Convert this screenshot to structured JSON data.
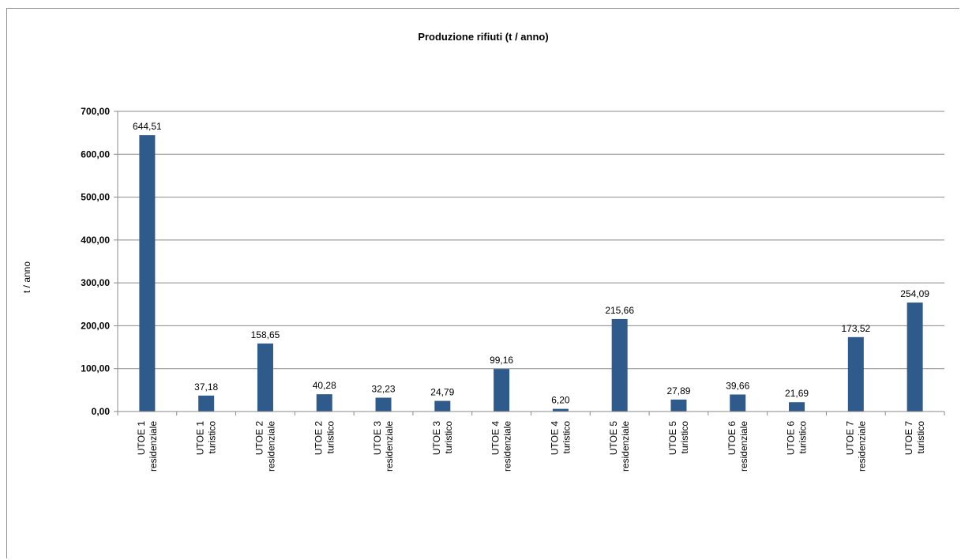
{
  "chart_data": {
    "type": "bar",
    "title": "Produzione rifiuti  (t / anno)",
    "ylabel": "t / anno",
    "xlabel": "",
    "ylim": [
      0,
      700
    ],
    "ytick_step": 100,
    "ytick_labels": [
      "0,00",
      "100,00",
      "200,00",
      "300,00",
      "400,00",
      "500,00",
      "600,00",
      "700,00"
    ],
    "grid": true,
    "legend": "none",
    "bar_color": "#2f5a8c",
    "categories": [
      [
        "UTOE 1",
        "residenziale"
      ],
      [
        "UTOE 1",
        "turistico"
      ],
      [
        "UTOE 2",
        "residenziale"
      ],
      [
        "UTOE 2",
        "turistico"
      ],
      [
        "UTOE 3",
        "residenziale"
      ],
      [
        "UTOE 3",
        "turistico"
      ],
      [
        "UTOE 4",
        "residenziale"
      ],
      [
        "UTOE 4",
        "turistico"
      ],
      [
        "UTOE 5",
        "residenziale"
      ],
      [
        "UTOE 5",
        "turistico"
      ],
      [
        "UTOE 6",
        "residenziale"
      ],
      [
        "UTOE 6",
        "turistico"
      ],
      [
        "UTOE 7",
        "residenziale"
      ],
      [
        "UTOE 7",
        "turistico"
      ]
    ],
    "values": [
      644.51,
      37.18,
      158.65,
      40.28,
      32.23,
      24.79,
      99.16,
      6.2,
      215.66,
      27.89,
      39.66,
      21.69,
      173.52,
      254.09
    ],
    "value_labels": [
      "644,51",
      "37,18",
      "158,65",
      "40,28",
      "32,23",
      "24,79",
      "99,16",
      "6,20",
      "215,66",
      "27,89",
      "39,66",
      "21,69",
      "173,52",
      "254,09"
    ]
  }
}
